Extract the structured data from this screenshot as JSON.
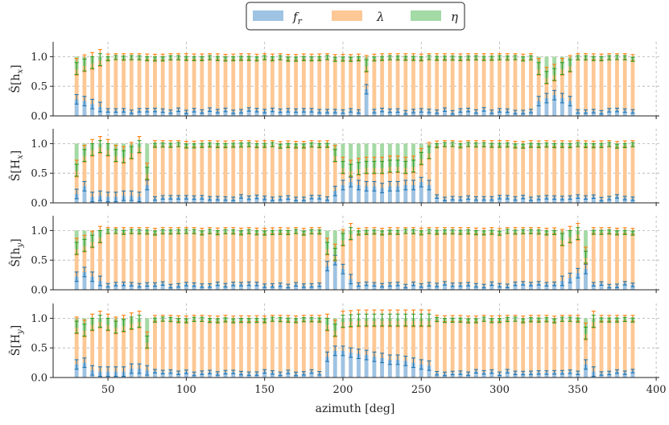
{
  "chart_data": {
    "type": "bar",
    "stacked": true,
    "xlabel": "azimuth [deg]",
    "xlim": [
      15,
      402
    ],
    "ylim": [
      0,
      1.25
    ],
    "x_ticks": [
      "50",
      "100",
      "150",
      "200",
      "250",
      "300",
      "350",
      "400"
    ],
    "y_ticks": [
      "0.0",
      "0.5",
      "1.0"
    ],
    "grid": "vertical and horizontal dashed",
    "legend": {
      "placement": "top-center",
      "entries": [
        {
          "name": "f_r",
          "label_main": "f",
          "label_sub": "r",
          "color": "#9ec3e3"
        },
        {
          "name": "lambda",
          "label_main": "λ",
          "label_sub": "",
          "color": "#fdc895"
        },
        {
          "name": "eta",
          "label_main": "η",
          "label_sub": "",
          "color": "#a3daa6"
        }
      ]
    },
    "colors": {
      "fr_fill": "#9ec3e3",
      "lambda_fill": "#fdc895",
      "eta_fill": "#a3daa6",
      "fr_err": "#1f77b4",
      "lambda_err": "#ff7f0e",
      "eta_err": "#2ca02c"
    },
    "x": [
      30,
      35,
      40,
      45,
      50,
      55,
      60,
      65,
      70,
      75,
      80,
      85,
      90,
      95,
      100,
      105,
      110,
      115,
      120,
      125,
      130,
      135,
      140,
      145,
      150,
      155,
      160,
      165,
      170,
      175,
      180,
      185,
      190,
      195,
      200,
      205,
      210,
      215,
      220,
      225,
      230,
      235,
      240,
      245,
      250,
      255,
      260,
      265,
      270,
      275,
      280,
      285,
      290,
      295,
      300,
      305,
      310,
      315,
      320,
      325,
      330,
      335,
      340,
      345,
      350,
      355,
      360,
      365,
      370,
      375,
      380,
      385
    ],
    "panels": [
      {
        "name": "h_x",
        "ylabel_main": "Ŝ[h",
        "ylabel_sub": "x",
        "ylabel_end": "]",
        "special": [
          {
            "x": [
              30,
              35,
              40,
              45
            ],
            "fr": [
              0.28,
              0.25,
              0.2,
              0.15
            ],
            "eta": [
              0.8,
              0.86,
              0.9,
              0.95
            ]
          },
          {
            "x": [
              215
            ],
            "fr": [
              0.45
            ],
            "eta": [
              0.85
            ]
          },
          {
            "x": [
              325,
              330,
              335,
              340,
              345
            ],
            "fr": [
              0.25,
              0.3,
              0.35,
              0.3,
              0.25
            ],
            "eta": [
              0.8,
              0.65,
              0.7,
              0.8,
              0.85
            ]
          }
        ]
      },
      {
        "name": "H_x",
        "ylabel_main": "Ŝ[H",
        "ylabel_sub": "x",
        "ylabel_end": "]",
        "special": [
          {
            "x": [
              30,
              35,
              40,
              45,
              50,
              55,
              60,
              65,
              70,
              75
            ],
            "fr": [
              0.15,
              0.28,
              0.1,
              0.12,
              0.1,
              0.1,
              0.12,
              0.12,
              0.1,
              0.3
            ],
            "eta": [
              0.55,
              0.8,
              0.9,
              0.95,
              0.9,
              0.8,
              0.78,
              0.85,
              0.95,
              0.5
            ]
          },
          {
            "x": [
              195,
              200,
              205,
              210,
              215,
              220,
              225,
              230,
              235,
              240,
              245,
              250,
              255
            ],
            "fr": [
              0.2,
              0.3,
              0.35,
              0.3,
              0.28,
              0.28,
              0.25,
              0.28,
              0.28,
              0.3,
              0.3,
              0.35,
              0.3
            ],
            "eta": [
              0.8,
              0.6,
              0.55,
              0.58,
              0.6,
              0.6,
              0.6,
              0.62,
              0.62,
              0.6,
              0.62,
              0.75,
              0.85
            ]
          }
        ]
      },
      {
        "name": "h_y",
        "ylabel_main": "Ŝ[h",
        "ylabel_sub": "y",
        "ylabel_end": "]",
        "special": [
          {
            "x": [
              30,
              35,
              40,
              45
            ],
            "fr": [
              0.22,
              0.3,
              0.22,
              0.15
            ],
            "eta": [
              0.7,
              0.75,
              0.82,
              0.9
            ]
          },
          {
            "x": [
              190,
              195,
              200,
              205
            ],
            "fr": [
              0.4,
              0.5,
              0.35,
              0.18
            ],
            "eta": [
              0.7,
              0.6,
              0.85,
              0.95
            ]
          },
          {
            "x": [
              340,
              345,
              350,
              355
            ],
            "fr": [
              0.15,
              0.2,
              0.28,
              0.35
            ],
            "eta": [
              0.85,
              0.9,
              0.95,
              0.55
            ]
          }
        ]
      },
      {
        "name": "H_y",
        "ylabel_main": "Ŝ[H",
        "ylabel_sub": "y",
        "ylabel_end": "]",
        "special": [
          {
            "x": [
              30,
              35,
              40,
              45,
              50,
              55,
              60,
              65,
              70,
              75
            ],
            "fr": [
              0.22,
              0.25,
              0.12,
              0.1,
              0.1,
              0.1,
              0.1,
              0.15,
              0.15,
              0.12
            ],
            "eta": [
              0.85,
              0.8,
              0.9,
              0.95,
              0.9,
              0.85,
              0.88,
              0.92,
              0.95,
              0.6
            ]
          },
          {
            "x": [
              190,
              195,
              200,
              205,
              210,
              215,
              220,
              225,
              230,
              235,
              240,
              245,
              250,
              255
            ],
            "fr": [
              0.35,
              0.45,
              0.45,
              0.42,
              0.4,
              0.38,
              0.35,
              0.33,
              0.3,
              0.3,
              0.28,
              0.25,
              0.22,
              0.2
            ],
            "eta": [
              0.9,
              0.8,
              0.95,
              0.96,
              0.97,
              0.97,
              0.97,
              0.97,
              0.97,
              0.97,
              0.97,
              0.97,
              0.97,
              0.97
            ]
          },
          {
            "x": [
              355,
              360
            ],
            "fr": [
              0.22,
              0.1
            ],
            "eta": [
              0.75,
              0.95
            ]
          }
        ]
      }
    ]
  }
}
